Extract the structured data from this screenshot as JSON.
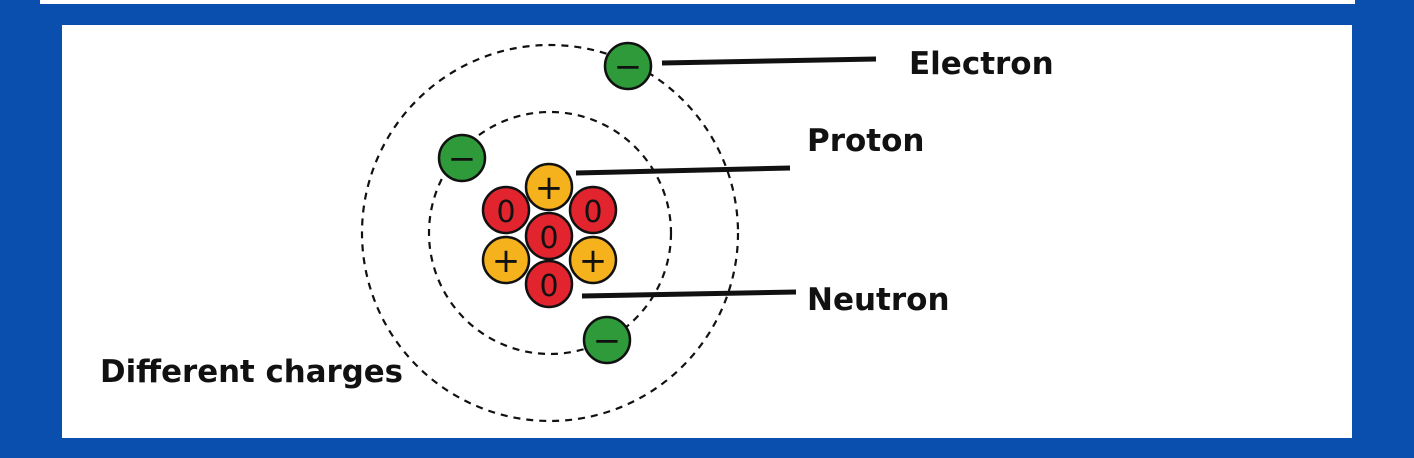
{
  "labels": {
    "electron": "Electron",
    "proton": "Proton",
    "neutron": "Neutron",
    "caption": "Different charges"
  },
  "symbols": {
    "electron": "−",
    "proton": "+",
    "neutron": "0"
  },
  "colors": {
    "background": "#0a4fae",
    "panel": "#ffffff",
    "electron": "#2e9a3a",
    "proton": "#f5b21c",
    "neutron": "#e2242f",
    "stroke": "#111111"
  }
}
